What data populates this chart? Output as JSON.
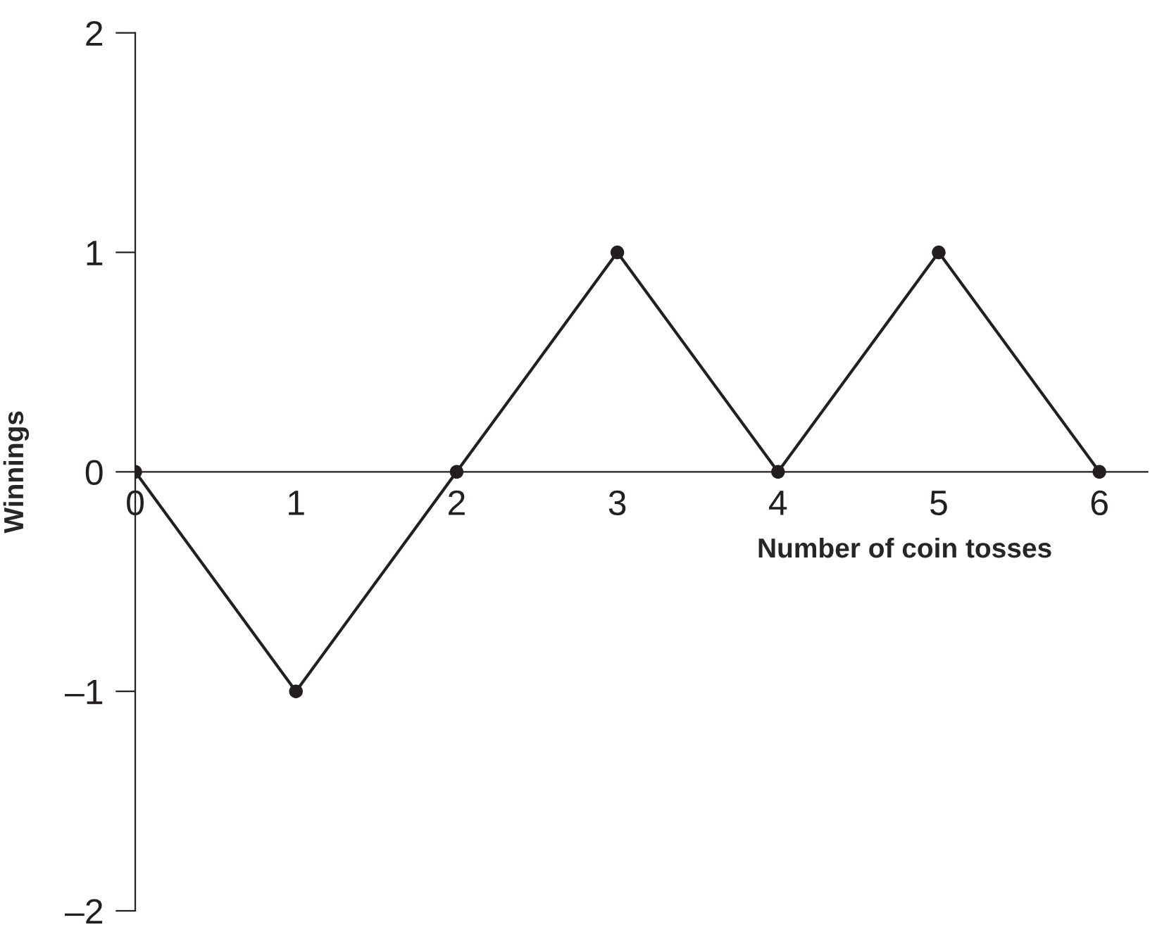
{
  "chart_data": {
    "type": "line",
    "xlabel": "Number of coin tosses",
    "ylabel": "Winnings",
    "x": [
      0,
      1,
      2,
      3,
      4,
      5,
      6
    ],
    "series": [
      {
        "color": "#231f20",
        "values": [
          0,
          -1,
          0,
          1,
          0,
          1,
          0
        ]
      }
    ],
    "xlim": [
      0,
      6.3
    ],
    "ylim": [
      -2,
      2
    ],
    "xticks": [
      0,
      1,
      2,
      3,
      4,
      5,
      6
    ],
    "yticks": [
      {
        "value": -2,
        "label": "–2"
      },
      {
        "value": -1,
        "label": "–1"
      },
      0,
      1,
      2
    ],
    "marker": "circle",
    "line_style": "solid",
    "grid": false,
    "legend": false
  }
}
